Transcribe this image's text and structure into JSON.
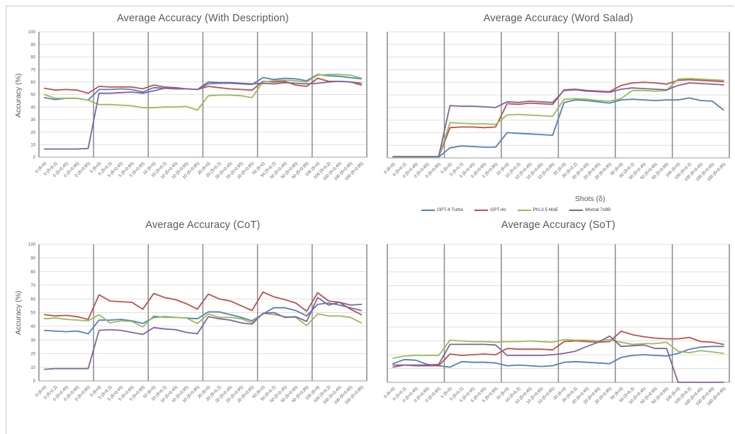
{
  "legend": {
    "title": "Shots (δ)",
    "items": [
      {
        "label": "GPT-4 Turbo",
        "color": "#4F81BD"
      },
      {
        "label": "GPT-4o",
        "color": "#C0504D"
      },
      {
        "label": "Phi-3.5 MoE",
        "color": "#9BBB59"
      },
      {
        "label": "Mixtral 7x8B",
        "color": "#8064A2"
      }
    ]
  },
  "style_colors": {
    "v_gridline": "#8a8a8a",
    "h_gridline": "#e0e0e0",
    "axis_line": "#9c9c9c",
    "text": "#595959"
  },
  "chart_data": [
    {
      "type": "line",
      "title": "Average Accuracy (With Description)",
      "ylabel": "Accuracy (%)",
      "xlabel": "",
      "ylim": [
        0,
        100
      ],
      "ytick_step": 10,
      "show_yticks": true,
      "group_size": 5,
      "categories": [
        "0 (δ=0)",
        "0 (δ=0.2)",
        "0 (δ=0.45)",
        "0 (δ=0.65)",
        "0 (δ=0.85)",
        "5 (δ=0)",
        "5 (δ=0.2)",
        "5 (δ=0.45)",
        "5 (δ=0.65)",
        "5 (δ=0.85)",
        "10 (δ=0)",
        "10 (δ=0.2)",
        "10 (δ=0.45)",
        "10 (δ=0.65)",
        "10 (δ=0.85)",
        "20 (δ=0)",
        "20 (δ=0.2)",
        "20 (δ=0.45)",
        "20 (δ=0.65)",
        "20 (δ=0.85)",
        "50 (δ=0)",
        "50 (δ=0.2)",
        "50 (δ=0.45)",
        "50 (δ=0.65)",
        "50 (δ=0.85)",
        "100 (δ=0)",
        "100 (δ=0.2)",
        "100 (δ=0.45)",
        "100 (δ=0.65)",
        "100 (δ=0.85)"
      ],
      "series": [
        {
          "name": "GPT-4 Turbo",
          "color": "#4F81BD",
          "values": [
            47.5,
            46,
            47,
            47,
            45.5,
            54,
            54,
            54.5,
            54,
            52,
            55.5,
            55,
            54.5,
            54.5,
            54,
            58.5,
            59,
            59,
            58.5,
            58,
            63.5,
            62,
            63,
            62.5,
            61,
            66,
            65,
            64.5,
            63.5,
            62.5
          ]
        },
        {
          "name": "GPT-4o",
          "color": "#C0504D",
          "values": [
            55,
            53.5,
            54,
            53.5,
            51,
            56.5,
            56,
            56,
            56,
            54.5,
            57.5,
            56,
            55.5,
            54.5,
            54,
            56.5,
            55.5,
            54.5,
            54,
            53.5,
            60.5,
            60,
            60.5,
            57.5,
            56.5,
            63,
            60.5,
            60.5,
            60,
            59
          ]
        },
        {
          "name": "Phi-3.5 MoE",
          "color": "#9BBB59",
          "values": [
            50,
            47,
            47,
            47,
            45.5,
            42,
            42,
            41.5,
            41,
            39.5,
            39.5,
            40,
            40,
            40.5,
            37.5,
            49,
            49.5,
            49.5,
            49,
            47.5,
            60,
            61,
            61.5,
            61,
            60,
            65.5,
            66,
            66,
            65.5,
            63
          ]
        },
        {
          "name": "Mixtral 7x8B",
          "color": "#8064A2",
          "values": [
            6.5,
            6.5,
            6.5,
            6.5,
            7,
            51,
            51,
            51.5,
            52,
            51,
            53,
            55,
            54.5,
            54.5,
            54,
            60,
            59.5,
            59.5,
            59,
            58.5,
            59,
            58.5,
            59.5,
            59,
            58.5,
            59,
            60,
            60.5,
            60,
            57.5
          ]
        }
      ]
    },
    {
      "type": "line",
      "title": "Average Accuracy (Word Salad)",
      "ylabel": "",
      "xlabel": "Shots (δ)",
      "ylim": [
        0,
        100
      ],
      "ytick_step": 10,
      "show_yticks": false,
      "group_size": 5,
      "categories": [
        "0 (δ=0)",
        "0 (δ=0.2)",
        "0 (δ=0.45)",
        "0 (δ=0.65)",
        "0 (δ=0.85)",
        "5 (δ=0)",
        "5 (δ=0.2)",
        "5 (δ=0.45)",
        "5 (δ=0.65)",
        "5 (δ=0.85)",
        "10 (δ=0)",
        "10 (δ=0.2)",
        "10 (δ=0.45)",
        "10 (δ=0.65)",
        "10 (δ=0.85)",
        "20 (δ=0)",
        "20 (δ=0.2)",
        "20 (δ=0.45)",
        "20 (δ=0.65)",
        "20 (δ=0.85)",
        "50 (δ=0)",
        "50 (δ=0.2)",
        "50 (δ=0.45)",
        "50 (δ=0.65)",
        "50 (δ=0.85)",
        "100 (δ=0)",
        "100 (δ=0.2)",
        "100 (δ=0.45)",
        "100 (δ=0.65)",
        "100 (δ=0.85)"
      ],
      "series": [
        {
          "name": "GPT-4 Turbo",
          "color": "#4F81BD",
          "values": [
            0.5,
            0.5,
            0.5,
            0.5,
            0.5,
            8,
            9.5,
            9,
            8.5,
            8.5,
            20,
            19.5,
            19,
            18.5,
            18,
            44,
            46,
            45.5,
            44.5,
            43.5,
            46,
            46.5,
            46,
            45.5,
            46,
            46,
            47.5,
            45.5,
            45,
            38
          ]
        },
        {
          "name": "GPT-4o",
          "color": "#C0504D",
          "values": [
            0.5,
            0.5,
            0.5,
            0.5,
            0.5,
            24,
            24.5,
            24.5,
            24,
            24.5,
            43,
            42.5,
            43.5,
            43,
            42.5,
            54,
            54.5,
            53.5,
            53,
            52.5,
            57.5,
            59.5,
            60,
            59.5,
            58.5,
            61.5,
            62,
            61.5,
            61,
            60.5
          ]
        },
        {
          "name": "Phi-3.5 MoE",
          "color": "#9BBB59",
          "values": [
            0.5,
            0.5,
            0.5,
            0.5,
            0.5,
            28,
            27.5,
            27,
            27,
            26.5,
            34,
            34.5,
            34,
            33.5,
            33,
            46.5,
            47,
            46.5,
            45.5,
            45,
            47,
            53.5,
            53.5,
            53,
            53.5,
            62.5,
            63,
            62.5,
            62,
            61.5
          ]
        },
        {
          "name": "Mixtral 7x8B",
          "color": "#8064A2",
          "values": [
            1,
            1,
            1,
            1,
            1,
            41.5,
            41,
            41,
            40.5,
            40,
            44.5,
            44,
            45,
            44.5,
            44,
            53.5,
            54,
            53,
            52.5,
            52,
            54.5,
            55.5,
            55,
            54.5,
            54,
            57.5,
            59.5,
            59,
            58.5,
            58
          ]
        }
      ]
    },
    {
      "type": "line",
      "title": "Average Accuracy (CoT)",
      "ylabel": "Accuracy (%)",
      "xlabel": "",
      "ylim": [
        0,
        100
      ],
      "ytick_step": 10,
      "show_yticks": true,
      "group_size": 5,
      "categories": [
        "0 (δ=0)",
        "0 (δ=0.2)",
        "0 (δ=0.45)",
        "0 (δ=0.65)",
        "0 (δ=0.85)",
        "5 (δ=0)",
        "5 (δ=0.2)",
        "5 (δ=0.45)",
        "5 (δ=0.65)",
        "5 (δ=0.85)",
        "10 (δ=0)",
        "10 (δ=0.2)",
        "10 (δ=0.45)",
        "10 (δ=0.65)",
        "10 (δ=0.85)",
        "20 (δ=0)",
        "20 (δ=0.2)",
        "20 (δ=0.45)",
        "20 (δ=0.65)",
        "20 (δ=0.85)",
        "50 (δ=0)",
        "50 (δ=0.2)",
        "50 (δ=0.45)",
        "50 (δ=0.65)",
        "50 (δ=0.85)",
        "100 (δ=0)",
        "100 (δ=0.2)",
        "100 (δ=0.45)",
        "100 (δ=0.65)",
        "100 (δ=0.85)"
      ],
      "series": [
        {
          "name": "GPT-4 Turbo",
          "color": "#4F81BD",
          "values": [
            37,
            36.5,
            36,
            36.5,
            34.5,
            44.5,
            44.5,
            45,
            44,
            42,
            46.5,
            47,
            46.5,
            46,
            45.5,
            50.5,
            50.5,
            48.5,
            46.5,
            44,
            49,
            53.5,
            53.5,
            51.5,
            47.5,
            56,
            57,
            55.5,
            53.5,
            51.5
          ]
        },
        {
          "name": "GPT-4o",
          "color": "#C0504D",
          "values": [
            48.5,
            47.5,
            48,
            47,
            45,
            63,
            58.5,
            58,
            57.5,
            52.5,
            64,
            61,
            59.5,
            56.5,
            52.5,
            63.5,
            60,
            58.5,
            55,
            51.5,
            65,
            61.5,
            59.5,
            57,
            51,
            64.5,
            58.5,
            57.5,
            52.5,
            48.5
          ]
        },
        {
          "name": "Phi-3.5 MoE",
          "color": "#9BBB59",
          "values": [
            45.5,
            46,
            45,
            44.5,
            44,
            48.5,
            42.5,
            44,
            43.5,
            39.5,
            47.5,
            46.5,
            46.5,
            46,
            42,
            49,
            46.5,
            46.5,
            45.5,
            42.5,
            49.5,
            48.5,
            47,
            46.5,
            40.5,
            49,
            47.5,
            47.5,
            46.5,
            42.5
          ]
        },
        {
          "name": "Mixtral 7x8B",
          "color": "#8064A2",
          "values": [
            8.5,
            9,
            9,
            9,
            9,
            37,
            37.5,
            37,
            35.5,
            34,
            39,
            38,
            37.5,
            35.5,
            34.5,
            47,
            45.5,
            44.5,
            42.5,
            41.5,
            49.5,
            50,
            46.5,
            47,
            43.5,
            61,
            55.5,
            57.5,
            55.5,
            56
          ]
        }
      ]
    },
    {
      "type": "line",
      "title": "Average Accuracy (SoT)",
      "ylabel": "",
      "xlabel": "",
      "ylim": [
        0,
        100
      ],
      "ytick_step": 10,
      "show_yticks": false,
      "group_size": 5,
      "categories": [
        "0 (δ=0)",
        "0 (δ=0.2)",
        "0 (δ=0.45)",
        "0 (δ=0.65)",
        "0 (δ=0.85)",
        "5 (δ=0)",
        "5 (δ=0.2)",
        "5 (δ=0.45)",
        "5 (δ=0.65)",
        "5 (δ=0.85)",
        "10 (δ=0)",
        "10 (δ=0.2)",
        "10 (δ=0.45)",
        "10 (δ=0.65)",
        "10 (δ=0.85)",
        "20 (δ=0)",
        "20 (δ=0.2)",
        "20 (δ=0.45)",
        "20 (δ=0.65)",
        "20 (δ=0.85)",
        "50 (δ=0)",
        "50 (δ=0.2)",
        "50 (δ=0.45)",
        "50 (δ=0.65)",
        "50 (δ=0.85)",
        "100 (δ=0)",
        "100 (δ=0.2)",
        "100 (δ=0.45)",
        "100 (δ=0.65)",
        "100 (δ=0.85)"
      ],
      "series": [
        {
          "name": "GPT-4 Turbo",
          "color": "#4F81BD",
          "values": [
            13.5,
            16.5,
            16,
            13,
            12,
            11,
            15,
            14.5,
            14.5,
            14,
            12,
            12.5,
            12,
            11.5,
            12,
            14.5,
            15,
            14.5,
            14,
            13.5,
            18,
            19.5,
            20,
            19.5,
            19,
            21,
            24,
            25.5,
            26,
            26
          ]
        },
        {
          "name": "GPT-4o",
          "color": "#C0504D",
          "values": [
            11,
            12.5,
            12,
            12,
            12,
            20.5,
            19.5,
            20,
            20.5,
            20,
            24.5,
            24,
            24,
            24,
            23.5,
            29.5,
            30,
            29.5,
            29,
            29.5,
            37,
            34.5,
            33,
            32,
            31.5,
            31.5,
            32.5,
            29.5,
            29,
            27.5
          ]
        },
        {
          "name": "Phi-3.5 MoE",
          "color": "#9BBB59",
          "values": [
            17.5,
            19,
            19.5,
            19.5,
            19.5,
            30.5,
            30,
            29.5,
            29.5,
            29,
            29.5,
            29.5,
            30,
            29.5,
            29,
            31,
            30.5,
            30.5,
            30,
            31,
            29,
            27.5,
            28,
            28,
            29,
            22.5,
            21.5,
            23,
            22,
            21
          ]
        },
        {
          "name": "Mixtral 7x8B",
          "color": "#8064A2",
          "values": [
            12.5,
            12.5,
            12.5,
            12.5,
            13,
            27.5,
            27.5,
            27.5,
            27.5,
            27,
            19.5,
            19.5,
            19.5,
            19.5,
            20,
            21,
            22.5,
            26,
            29,
            33.5,
            26,
            26.5,
            27,
            24.5,
            24.5,
            0,
            0,
            0,
            0,
            0
          ]
        }
      ]
    }
  ]
}
